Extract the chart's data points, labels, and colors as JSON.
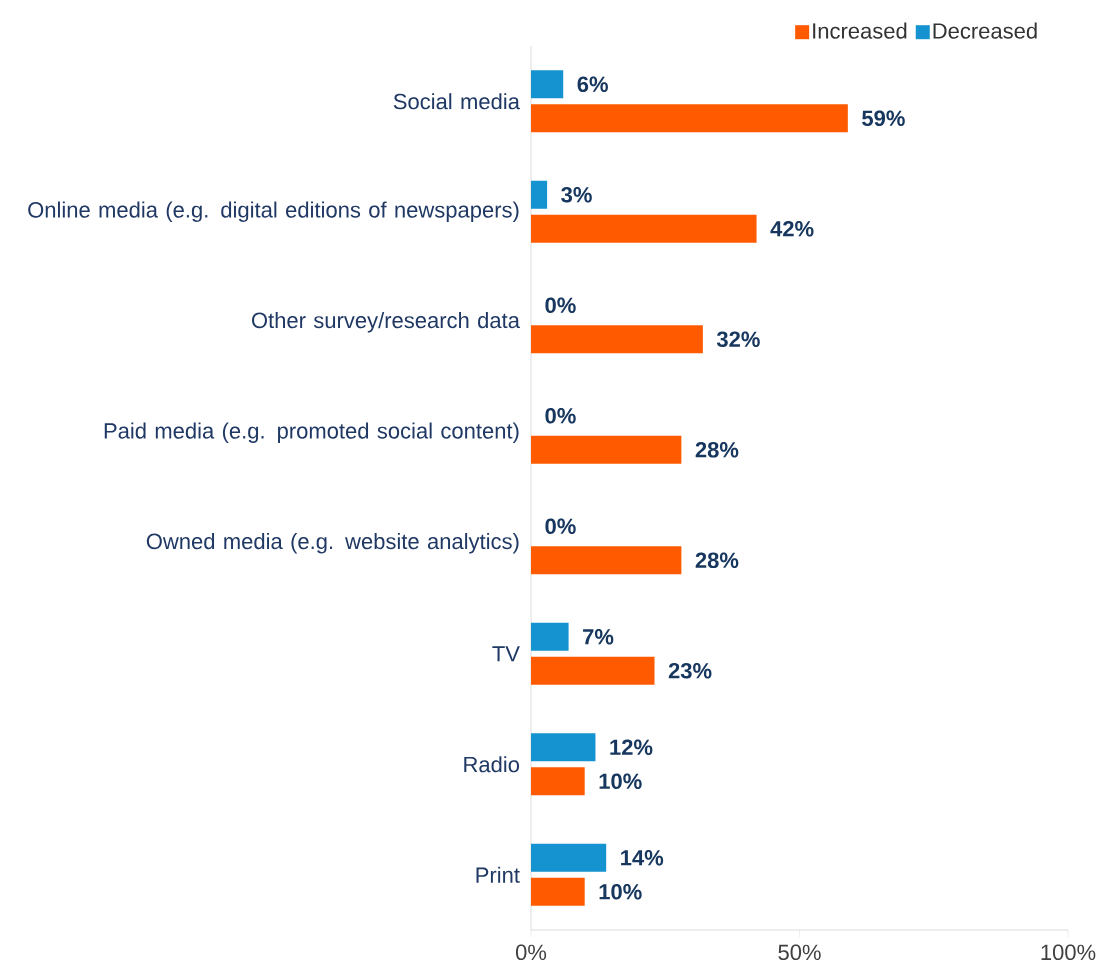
{
  "chart_data": {
    "type": "bar",
    "orientation": "horizontal",
    "categories": [
      "Social media",
      "Online media (e.g. digital editions of newspapers)",
      "Other survey/research data",
      "Paid media (e.g. promoted social content)",
      "Owned media  (e.g. website analytics)",
      "TV",
      "Radio",
      "Print"
    ],
    "series": [
      {
        "name": "Increased",
        "color": "#ff5a00",
        "values": [
          59,
          42,
          32,
          28,
          28,
          23,
          10,
          10
        ],
        "value_labels": [
          "59%",
          "42%",
          "32%",
          "28%",
          "28%",
          "23%",
          "10%",
          "10%"
        ]
      },
      {
        "name": "Decreased",
        "color": "#1592d0",
        "values": [
          6,
          3,
          0,
          0,
          0,
          7,
          12,
          14
        ],
        "value_labels": [
          "6%",
          "3%",
          "0%",
          "0%",
          "0%",
          "7%",
          "12%",
          "14%"
        ]
      }
    ],
    "xlim": [
      0,
      100
    ],
    "xticks": [
      {
        "value": 0,
        "label": "0%"
      },
      {
        "value": 50,
        "label": "50%"
      },
      {
        "value": 100,
        "label": "100%"
      }
    ],
    "legend": "top"
  }
}
